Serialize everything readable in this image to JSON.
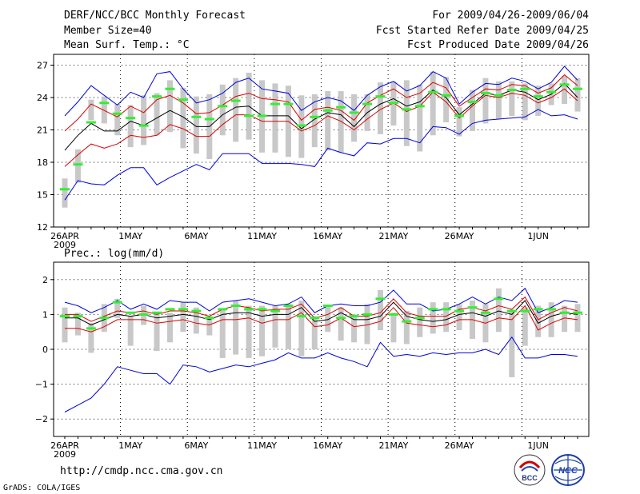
{
  "header": {
    "title": "DERF/NCC/BCC Monthly Forecast",
    "member_size": "Member Size=40",
    "variable": "Mean Surf. Temp.: °C",
    "forecast_period": "For 2009/04/26-2009/06/04",
    "fcst_started": "Fcst Started Refer Date 2009/04/25",
    "fcst_produced": "Fcst Produced Date 2009/04/26"
  },
  "footer": {
    "url": "http://cmdp.ncc.cma.gov.cn",
    "credit": "GrADS: COLA/IGES",
    "logo1_text": "BCC",
    "logo2_text": "NCC"
  },
  "colors": {
    "mean": "#000000",
    "spread": "#dd0000",
    "extremes": "#0000dd",
    "observed": "#33ee33",
    "box": "#c8c8c8"
  },
  "chart_data": [
    {
      "type": "line",
      "title": "Mean Surf. Temp.: °C",
      "xlabel": "",
      "ylabel": "°C",
      "ylim": [
        12,
        28
      ],
      "yticks": [
        12,
        15,
        18,
        21,
        24,
        27
      ],
      "x_ticks": [
        {
          "day": 0,
          "label": "26APR",
          "sub": "2009"
        },
        {
          "day": 5,
          "label": "1MAY"
        },
        {
          "day": 10,
          "label": "6MAY"
        },
        {
          "day": 15,
          "label": "11MAY"
        },
        {
          "day": 20,
          "label": "16MAY"
        },
        {
          "day": 25,
          "label": "21MAY"
        },
        {
          "day": 30,
          "label": "26MAY"
        },
        {
          "day": 36,
          "label": "1JUN"
        }
      ],
      "series": [
        {
          "name": "max",
          "color_key": "extremes",
          "values": [
            22.3,
            23.6,
            25.1,
            24.2,
            23.3,
            24.5,
            24.0,
            26.2,
            26.4,
            24.8,
            23.5,
            23.8,
            24.4,
            25.4,
            25.8,
            24.8,
            24.6,
            24.4,
            22.8,
            23.6,
            24.0,
            23.7,
            22.8,
            24.2,
            25.0,
            25.5,
            24.6,
            25.1,
            26.4,
            25.8,
            23.4,
            24.5,
            25.3,
            25.2,
            25.8,
            25.5,
            24.8,
            25.4,
            26.9,
            25.6
          ]
        },
        {
          "name": "upper",
          "color_key": "spread",
          "values": [
            20.9,
            22.0,
            23.4,
            22.8,
            22.2,
            23.2,
            22.6,
            23.8,
            24.2,
            23.5,
            22.5,
            22.6,
            23.3,
            24.1,
            24.4,
            23.9,
            23.8,
            23.6,
            21.9,
            22.9,
            23.1,
            22.8,
            21.9,
            23.5,
            24.2,
            24.8,
            24.0,
            24.4,
            25.4,
            24.9,
            23.2,
            24.0,
            24.8,
            24.7,
            25.2,
            25.1,
            24.4,
            24.9,
            26.1,
            25.1
          ]
        },
        {
          "name": "mean",
          "color_key": "mean",
          "values": [
            19.1,
            20.5,
            21.6,
            20.9,
            20.9,
            21.8,
            21.4,
            22.1,
            22.8,
            22.2,
            21.3,
            21.3,
            22.4,
            23.1,
            23.2,
            22.3,
            22.3,
            22.3,
            21.1,
            22.0,
            22.6,
            22.4,
            21.3,
            22.6,
            23.4,
            23.9,
            23.2,
            23.6,
            24.7,
            24.0,
            22.4,
            23.4,
            24.4,
            24.2,
            24.7,
            24.5,
            23.8,
            24.3,
            25.3,
            24.0
          ]
        },
        {
          "name": "lower",
          "color_key": "spread",
          "values": [
            17.6,
            18.7,
            19.7,
            19.3,
            19.7,
            20.5,
            20.3,
            20.5,
            21.5,
            21.1,
            20.4,
            20.4,
            21.5,
            22.4,
            22.4,
            21.8,
            21.8,
            21.8,
            20.9,
            21.4,
            22.3,
            21.8,
            21.0,
            22.0,
            22.9,
            23.5,
            22.7,
            23.2,
            24.5,
            23.6,
            22.1,
            23.2,
            24.2,
            24.0,
            24.4,
            24.2,
            23.5,
            24.0,
            24.8,
            23.7
          ]
        },
        {
          "name": "min",
          "color_key": "extremes",
          "values": [
            14.5,
            16.3,
            16.0,
            15.9,
            16.8,
            17.5,
            17.5,
            15.9,
            16.6,
            17.2,
            17.8,
            17.3,
            18.8,
            18.8,
            18.8,
            17.9,
            17.9,
            17.9,
            17.8,
            17.6,
            19.3,
            18.9,
            18.6,
            19.8,
            19.7,
            20.2,
            20.2,
            19.8,
            21.3,
            21.2,
            20.6,
            21.6,
            21.9,
            22.0,
            22.1,
            22.2,
            22.9,
            22.3,
            22.4,
            22.0
          ]
        },
        {
          "name": "observed",
          "color_key": "observed",
          "values": [
            15.5,
            17.8,
            21.7,
            23.5,
            22.5,
            22.1,
            21.4,
            24.1,
            24.8,
            23.8,
            22.2,
            22.0,
            23.2,
            23.7,
            22.3,
            22.3,
            23.4,
            23.4,
            21.4,
            22.2,
            22.8,
            23.1,
            22.6,
            23.4,
            24.1,
            23.5,
            22.9,
            23.2,
            24.5,
            24.2,
            22.3,
            23.6,
            24.4,
            24.2,
            24.7,
            24.8,
            24.1,
            24.5,
            25.2,
            24.8
          ]
        }
      ],
      "boxes": [
        [
          13.8,
          16.5
        ],
        [
          16.1,
          19.2
        ],
        [
          21.9,
          23.8
        ],
        [
          21.6,
          24.1
        ],
        [
          20.5,
          23.4
        ],
        [
          19.4,
          23.3
        ],
        [
          19.6,
          24.2
        ],
        [
          20.5,
          24.4
        ],
        [
          20.8,
          25.6
        ],
        [
          19.3,
          24.9
        ],
        [
          18.8,
          24.1
        ],
        [
          18.3,
          24.3
        ],
        [
          20.5,
          25.2
        ],
        [
          19.9,
          25.8
        ],
        [
          20.1,
          26.3
        ],
        [
          18.9,
          25.6
        ],
        [
          18.9,
          25.3
        ],
        [
          18.5,
          25.1
        ],
        [
          18.4,
          24.2
        ],
        [
          19.4,
          24.3
        ],
        [
          19.1,
          24.6
        ],
        [
          18.9,
          24.6
        ],
        [
          19.9,
          24.3
        ],
        [
          20.9,
          24.3
        ],
        [
          20.6,
          25.4
        ],
        [
          21.4,
          25.5
        ],
        [
          19.5,
          25.6
        ],
        [
          19.0,
          25.2
        ],
        [
          20.5,
          26.4
        ],
        [
          21.7,
          25.9
        ],
        [
          20.4,
          23.1
        ],
        [
          20.9,
          24.7
        ],
        [
          21.6,
          25.8
        ],
        [
          22.0,
          25.5
        ],
        [
          22.3,
          25.5
        ],
        [
          21.9,
          25.3
        ],
        [
          22.3,
          25.1
        ],
        [
          23.3,
          25.3
        ],
        [
          23.4,
          26.0
        ],
        [
          22.7,
          25.8
        ]
      ]
    },
    {
      "type": "line",
      "title": "Prec.: log(mm/d)",
      "xlabel": "",
      "ylabel": "log(mm/d)",
      "ylim": [
        -2.5,
        2.5
      ],
      "yticks": [
        -2,
        -1,
        0,
        1,
        2
      ],
      "x_ticks": [
        {
          "day": 0,
          "label": "26APR",
          "sub": "2009"
        },
        {
          "day": 5,
          "label": "1MAY"
        },
        {
          "day": 10,
          "label": "6MAY"
        },
        {
          "day": 15,
          "label": "11MAY"
        },
        {
          "day": 20,
          "label": "16MAY"
        },
        {
          "day": 25,
          "label": "21MAY"
        },
        {
          "day": 30,
          "label": "26MAY"
        },
        {
          "day": 36,
          "label": "1JUN"
        }
      ],
      "series": [
        {
          "name": "max",
          "color_key": "extremes",
          "values": [
            1.35,
            1.25,
            1.05,
            1.2,
            1.4,
            1.15,
            1.3,
            1.15,
            1.4,
            1.35,
            1.35,
            1.1,
            1.35,
            1.4,
            1.45,
            1.35,
            1.25,
            1.3,
            1.5,
            1.05,
            1.25,
            1.3,
            1.25,
            1.25,
            1.35,
            1.7,
            1.3,
            1.3,
            1.1,
            1.15,
            1.3,
            1.5,
            1.3,
            1.5,
            1.4,
            1.75,
            1.05,
            1.2,
            1.4,
            1.35
          ]
        },
        {
          "name": "upper",
          "color_key": "spread",
          "values": [
            1.0,
            1.0,
            0.8,
            0.95,
            1.1,
            1.05,
            1.1,
            1.0,
            1.1,
            1.1,
            1.05,
            0.95,
            1.15,
            1.25,
            1.2,
            1.1,
            1.15,
            1.15,
            1.3,
            0.9,
            1.0,
            1.2,
            0.95,
            0.95,
            1.05,
            1.45,
            1.05,
            0.95,
            0.95,
            0.95,
            1.15,
            1.2,
            1.1,
            1.25,
            1.15,
            1.5,
            0.85,
            1.05,
            1.2,
            1.1
          ]
        },
        {
          "name": "mean",
          "color_key": "mean",
          "values": [
            0.9,
            0.9,
            0.7,
            0.85,
            1.0,
            0.95,
            1.0,
            0.9,
            0.95,
            1.0,
            0.95,
            0.85,
            1.0,
            1.05,
            1.05,
            0.95,
            1.0,
            1.0,
            1.2,
            0.8,
            0.85,
            1.05,
            0.85,
            0.85,
            0.95,
            1.35,
            0.95,
            0.85,
            0.8,
            0.85,
            1.0,
            1.05,
            0.95,
            1.1,
            1.0,
            1.4,
            0.75,
            0.95,
            1.05,
            1.0
          ]
        },
        {
          "name": "lower",
          "color_key": "spread",
          "values": [
            0.6,
            0.6,
            0.5,
            0.65,
            0.85,
            0.85,
            0.85,
            0.75,
            0.8,
            0.85,
            0.75,
            0.7,
            0.85,
            0.85,
            0.9,
            0.75,
            0.85,
            0.85,
            1.05,
            0.65,
            0.7,
            0.9,
            0.65,
            0.7,
            0.8,
            1.2,
            0.75,
            0.7,
            0.65,
            0.7,
            0.85,
            0.85,
            0.75,
            0.9,
            0.85,
            1.25,
            0.55,
            0.75,
            0.9,
            0.85
          ]
        },
        {
          "name": "min",
          "color_key": "extremes",
          "values": [
            -1.8,
            -1.6,
            -1.4,
            -1.0,
            -0.5,
            -0.6,
            -0.7,
            -0.7,
            -1.0,
            -0.45,
            -0.5,
            -0.65,
            -0.55,
            -0.45,
            -0.5,
            -0.4,
            -0.3,
            -0.1,
            -0.25,
            -0.25,
            -0.1,
            -0.25,
            -0.35,
            -0.5,
            0.2,
            -0.2,
            -0.15,
            -0.2,
            -0.1,
            -0.15,
            -0.1,
            -0.1,
            0.0,
            -0.15,
            0.35,
            -0.25,
            -0.25,
            -0.15,
            -0.15,
            -0.2
          ]
        },
        {
          "name": "observed",
          "color_key": "observed",
          "values": [
            0.95,
            0.95,
            0.6,
            0.9,
            1.35,
            1.05,
            1.0,
            1.05,
            1.15,
            1.15,
            1.1,
            0.9,
            1.15,
            1.25,
            1.15,
            1.15,
            1.1,
            1.25,
            0.95,
            0.9,
            1.25,
            0.9,
            0.95,
            1.0,
            1.45,
            1.0,
            0.8,
            0.9,
            1.15,
            1.15,
            1.1,
            1.2,
            1.05,
            1.45,
            1.1,
            1.1,
            1.15,
            1.15,
            1.05,
            1.05
          ]
        }
      ],
      "boxes": [
        [
          0.2,
          1.2
        ],
        [
          0.4,
          1.05
        ],
        [
          -0.1,
          0.75
        ],
        [
          0.5,
          1.3
        ],
        [
          0.9,
          1.45
        ],
        [
          0.1,
          0.95
        ],
        [
          0.7,
          1.25
        ],
        [
          -0.05,
          1.05
        ],
        [
          0.2,
          1.05
        ],
        [
          0.5,
          1.35
        ],
        [
          0.45,
          1.2
        ],
        [
          0.4,
          0.95
        ],
        [
          -0.25,
          1.15
        ],
        [
          -0.15,
          1.4
        ],
        [
          -0.25,
          1.25
        ],
        [
          -0.2,
          1.25
        ],
        [
          0.05,
          1.25
        ],
        [
          0.0,
          1.3
        ],
        [
          -0.2,
          1.4
        ],
        [
          0.0,
          0.95
        ],
        [
          0.5,
          1.25
        ],
        [
          0.25,
          1.2
        ],
        [
          0.2,
          1.0
        ],
        [
          0.15,
          1.3
        ],
        [
          0.55,
          1.7
        ],
        [
          0.2,
          1.05
        ],
        [
          0.15,
          1.1
        ],
        [
          0.35,
          1.2
        ],
        [
          0.45,
          1.35
        ],
        [
          0.5,
          1.35
        ],
        [
          0.55,
          1.3
        ],
        [
          0.3,
          1.4
        ],
        [
          0.2,
          1.3
        ],
        [
          0.5,
          1.75
        ],
        [
          -0.8,
          1.1
        ],
        [
          0.1,
          1.2
        ],
        [
          0.35,
          1.25
        ],
        [
          0.35,
          1.35
        ],
        [
          0.5,
          1.25
        ],
        [
          0.5,
          1.3
        ]
      ]
    }
  ]
}
